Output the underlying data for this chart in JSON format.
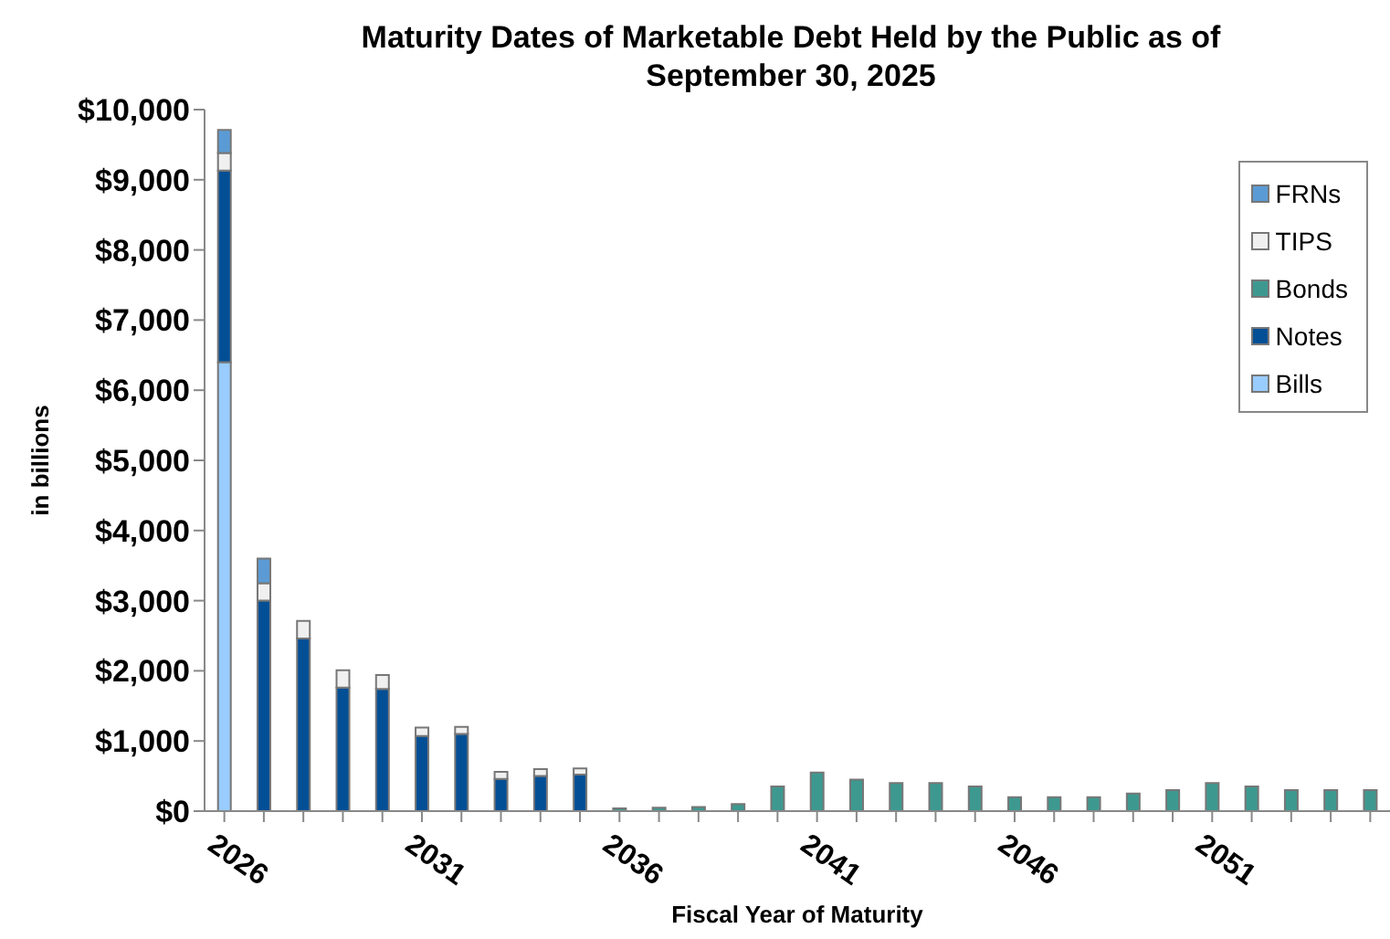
{
  "chart_data": {
    "type": "bar",
    "title": "Maturity Dates of Marketable Debt Held by the Public as of September 30, 2025",
    "xlabel": "Fiscal Year of Maturity",
    "ylabel": "in billions",
    "categories": [
      "2026",
      null,
      null,
      null,
      null,
      "2031",
      null,
      null,
      null,
      null,
      "2036",
      null,
      null,
      null,
      null,
      "2041",
      null,
      null,
      null,
      null,
      "2046",
      null,
      null,
      null,
      null,
      "2051",
      null,
      null,
      null,
      null
    ],
    "stacked": true,
    "legend": "top right",
    "grid": false,
    "ylim": [
      0,
      10000
    ],
    "yticks": [
      {
        "value": 0,
        "label": "$0"
      },
      {
        "value": 1000,
        "label": "$1,000"
      },
      {
        "value": 2000,
        "label": "$2,000"
      },
      {
        "value": 3000,
        "label": "$3,000"
      },
      {
        "value": 4000,
        "label": "$4,000"
      },
      {
        "value": 5000,
        "label": "$5,000"
      },
      {
        "value": 6000,
        "label": "$6,000"
      },
      {
        "value": 7000,
        "label": "$7,000"
      },
      {
        "value": 8000,
        "label": "$8,000"
      },
      {
        "value": 9000,
        "label": "$9,000"
      },
      {
        "value": 10000,
        "label": "$10,000"
      }
    ],
    "series": [
      {
        "name": "Bills",
        "color": "#99ccff",
        "values": [
          6400,
          null,
          null,
          null,
          null,
          null,
          null,
          null,
          null,
          null,
          null,
          null,
          null,
          null,
          null,
          null,
          null,
          null,
          null,
          null,
          null,
          null,
          null,
          null,
          null,
          null,
          null,
          null,
          null,
          null
        ]
      },
      {
        "name": "Notes",
        "color": "#034f96",
        "values": [
          2730,
          3000,
          2460,
          1760,
          1740,
          1070,
          1100,
          460,
          500,
          520,
          null,
          null,
          null,
          null,
          null,
          null,
          null,
          null,
          null,
          null,
          null,
          null,
          null,
          null,
          null,
          null,
          null,
          null,
          null,
          null
        ]
      },
      {
        "name": "Bonds",
        "color": "#3d9990",
        "values": [
          null,
          null,
          null,
          null,
          null,
          null,
          null,
          null,
          null,
          null,
          40,
          50,
          60,
          100,
          350,
          550,
          450,
          400,
          400,
          350,
          200,
          200,
          200,
          250,
          300,
          400,
          350,
          300,
          300,
          300
        ]
      },
      {
        "name": "TIPS",
        "color": "#f0f0f0",
        "values": [
          250,
          250,
          250,
          250,
          200,
          120,
          100,
          100,
          100,
          90,
          null,
          null,
          null,
          null,
          null,
          null,
          null,
          null,
          null,
          null,
          null,
          null,
          null,
          null,
          null,
          null,
          null,
          null,
          null,
          null
        ]
      },
      {
        "name": "FRNs",
        "color": "#5b9bd5",
        "values": [
          330,
          350,
          null,
          null,
          null,
          null,
          null,
          null,
          null,
          null,
          null,
          null,
          null,
          null,
          null,
          null,
          null,
          null,
          null,
          null,
          null,
          null,
          null,
          null,
          null,
          null,
          null,
          null,
          null,
          null
        ]
      }
    ]
  }
}
